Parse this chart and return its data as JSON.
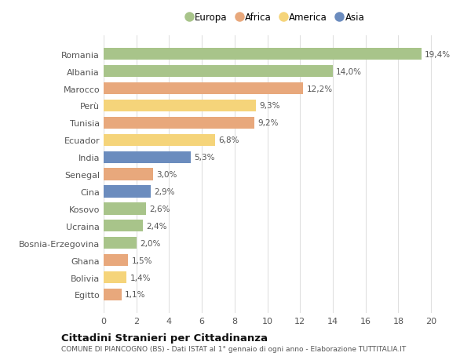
{
  "countries": [
    "Romania",
    "Albania",
    "Marocco",
    "Perù",
    "Tunisia",
    "Ecuador",
    "India",
    "Senegal",
    "Cina",
    "Kosovo",
    "Ucraina",
    "Bosnia-Erzegovina",
    "Ghana",
    "Bolivia",
    "Egitto"
  ],
  "values": [
    19.4,
    14.0,
    12.2,
    9.3,
    9.2,
    6.8,
    5.3,
    3.0,
    2.9,
    2.6,
    2.4,
    2.0,
    1.5,
    1.4,
    1.1
  ],
  "labels": [
    "19,4%",
    "14,0%",
    "12,2%",
    "9,3%",
    "9,2%",
    "6,8%",
    "5,3%",
    "3,0%",
    "2,9%",
    "2,6%",
    "2,4%",
    "2,0%",
    "1,5%",
    "1,4%",
    "1,1%"
  ],
  "continents": [
    "Europa",
    "Europa",
    "Africa",
    "America",
    "Africa",
    "America",
    "Asia",
    "Africa",
    "Asia",
    "Europa",
    "Europa",
    "Europa",
    "Africa",
    "America",
    "Africa"
  ],
  "colors": {
    "Europa": "#a8c48a",
    "Africa": "#e8a87c",
    "America": "#f5d47a",
    "Asia": "#6b8cbe"
  },
  "legend_order": [
    "Europa",
    "Africa",
    "America",
    "Asia"
  ],
  "title": "Cittadini Stranieri per Cittadinanza",
  "subtitle": "COMUNE DI PIANCOGNO (BS) - Dati ISTAT al 1° gennaio di ogni anno - Elaborazione TUTTITALIA.IT",
  "xlim": [
    0,
    21
  ],
  "xticks": [
    0,
    2,
    4,
    6,
    8,
    10,
    12,
    14,
    16,
    18,
    20
  ],
  "background_color": "#ffffff",
  "plot_bg_color": "#ffffff",
  "grid_color": "#e0e0e0"
}
